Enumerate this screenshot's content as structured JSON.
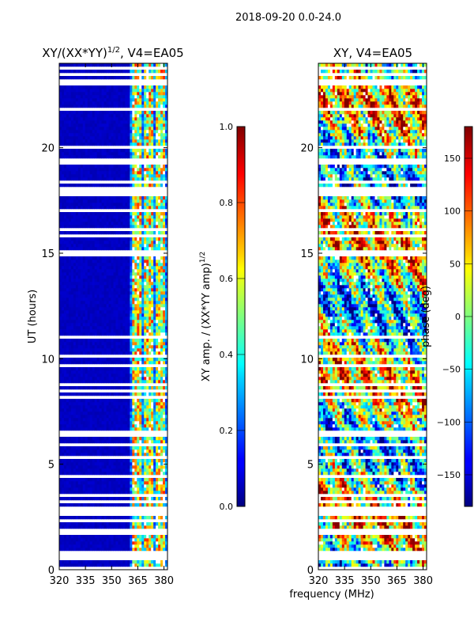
{
  "suptitle": "2018-09-20 0.0-24.0",
  "common_xlabel": "frequency (MHz)",
  "chart_data": [
    {
      "type": "heatmap",
      "title": "XY/(XX*YY)^1/2, V4=EA05",
      "title_main": "XY/(XX*YY)",
      "title_sup": "1/2",
      "title_tail": ", V4=EA05",
      "ylabel": "UT (hours)",
      "xlim": [
        320,
        382
      ],
      "ylim": [
        0,
        24
      ],
      "xticks": [
        "320",
        "335",
        "350",
        "365",
        "380"
      ],
      "xtick_values": [
        320,
        335,
        350,
        365,
        380
      ],
      "yticks": [
        "0",
        "5",
        "10",
        "15",
        "20"
      ],
      "ytick_values": [
        0,
        5,
        10,
        15,
        20
      ],
      "colorbar": {
        "label": "XY amp. / (XX*YY amp)^1/2",
        "label_main": "XY amp. / (XX*YY amp)",
        "label_sup": "1/2",
        "range": [
          0.0,
          1.0
        ],
        "ticks": [
          "0.0",
          "0.2",
          "0.4",
          "0.6",
          "0.8",
          "1.0"
        ],
        "tick_values": [
          0.0,
          0.2,
          0.4,
          0.6,
          0.8,
          1.0
        ]
      }
    },
    {
      "type": "heatmap",
      "title": "XY, V4=EA05",
      "xlim": [
        320,
        382
      ],
      "ylim": [
        0,
        24
      ],
      "xticks": [
        "320",
        "335",
        "350",
        "365",
        "380"
      ],
      "xtick_values": [
        320,
        335,
        350,
        365,
        380
      ],
      "yticks": [
        "0",
        "5",
        "10",
        "15",
        "20"
      ],
      "ytick_values": [
        0,
        5,
        10,
        15,
        20
      ],
      "colorbar": {
        "label": "phase (deg)",
        "range": [
          -180,
          180
        ],
        "ticks": [
          "−150",
          "−100",
          "−50",
          "0",
          "50",
          "100",
          "150"
        ],
        "tick_values": [
          -150,
          -100,
          -50,
          0,
          50,
          100,
          150
        ]
      }
    }
  ]
}
